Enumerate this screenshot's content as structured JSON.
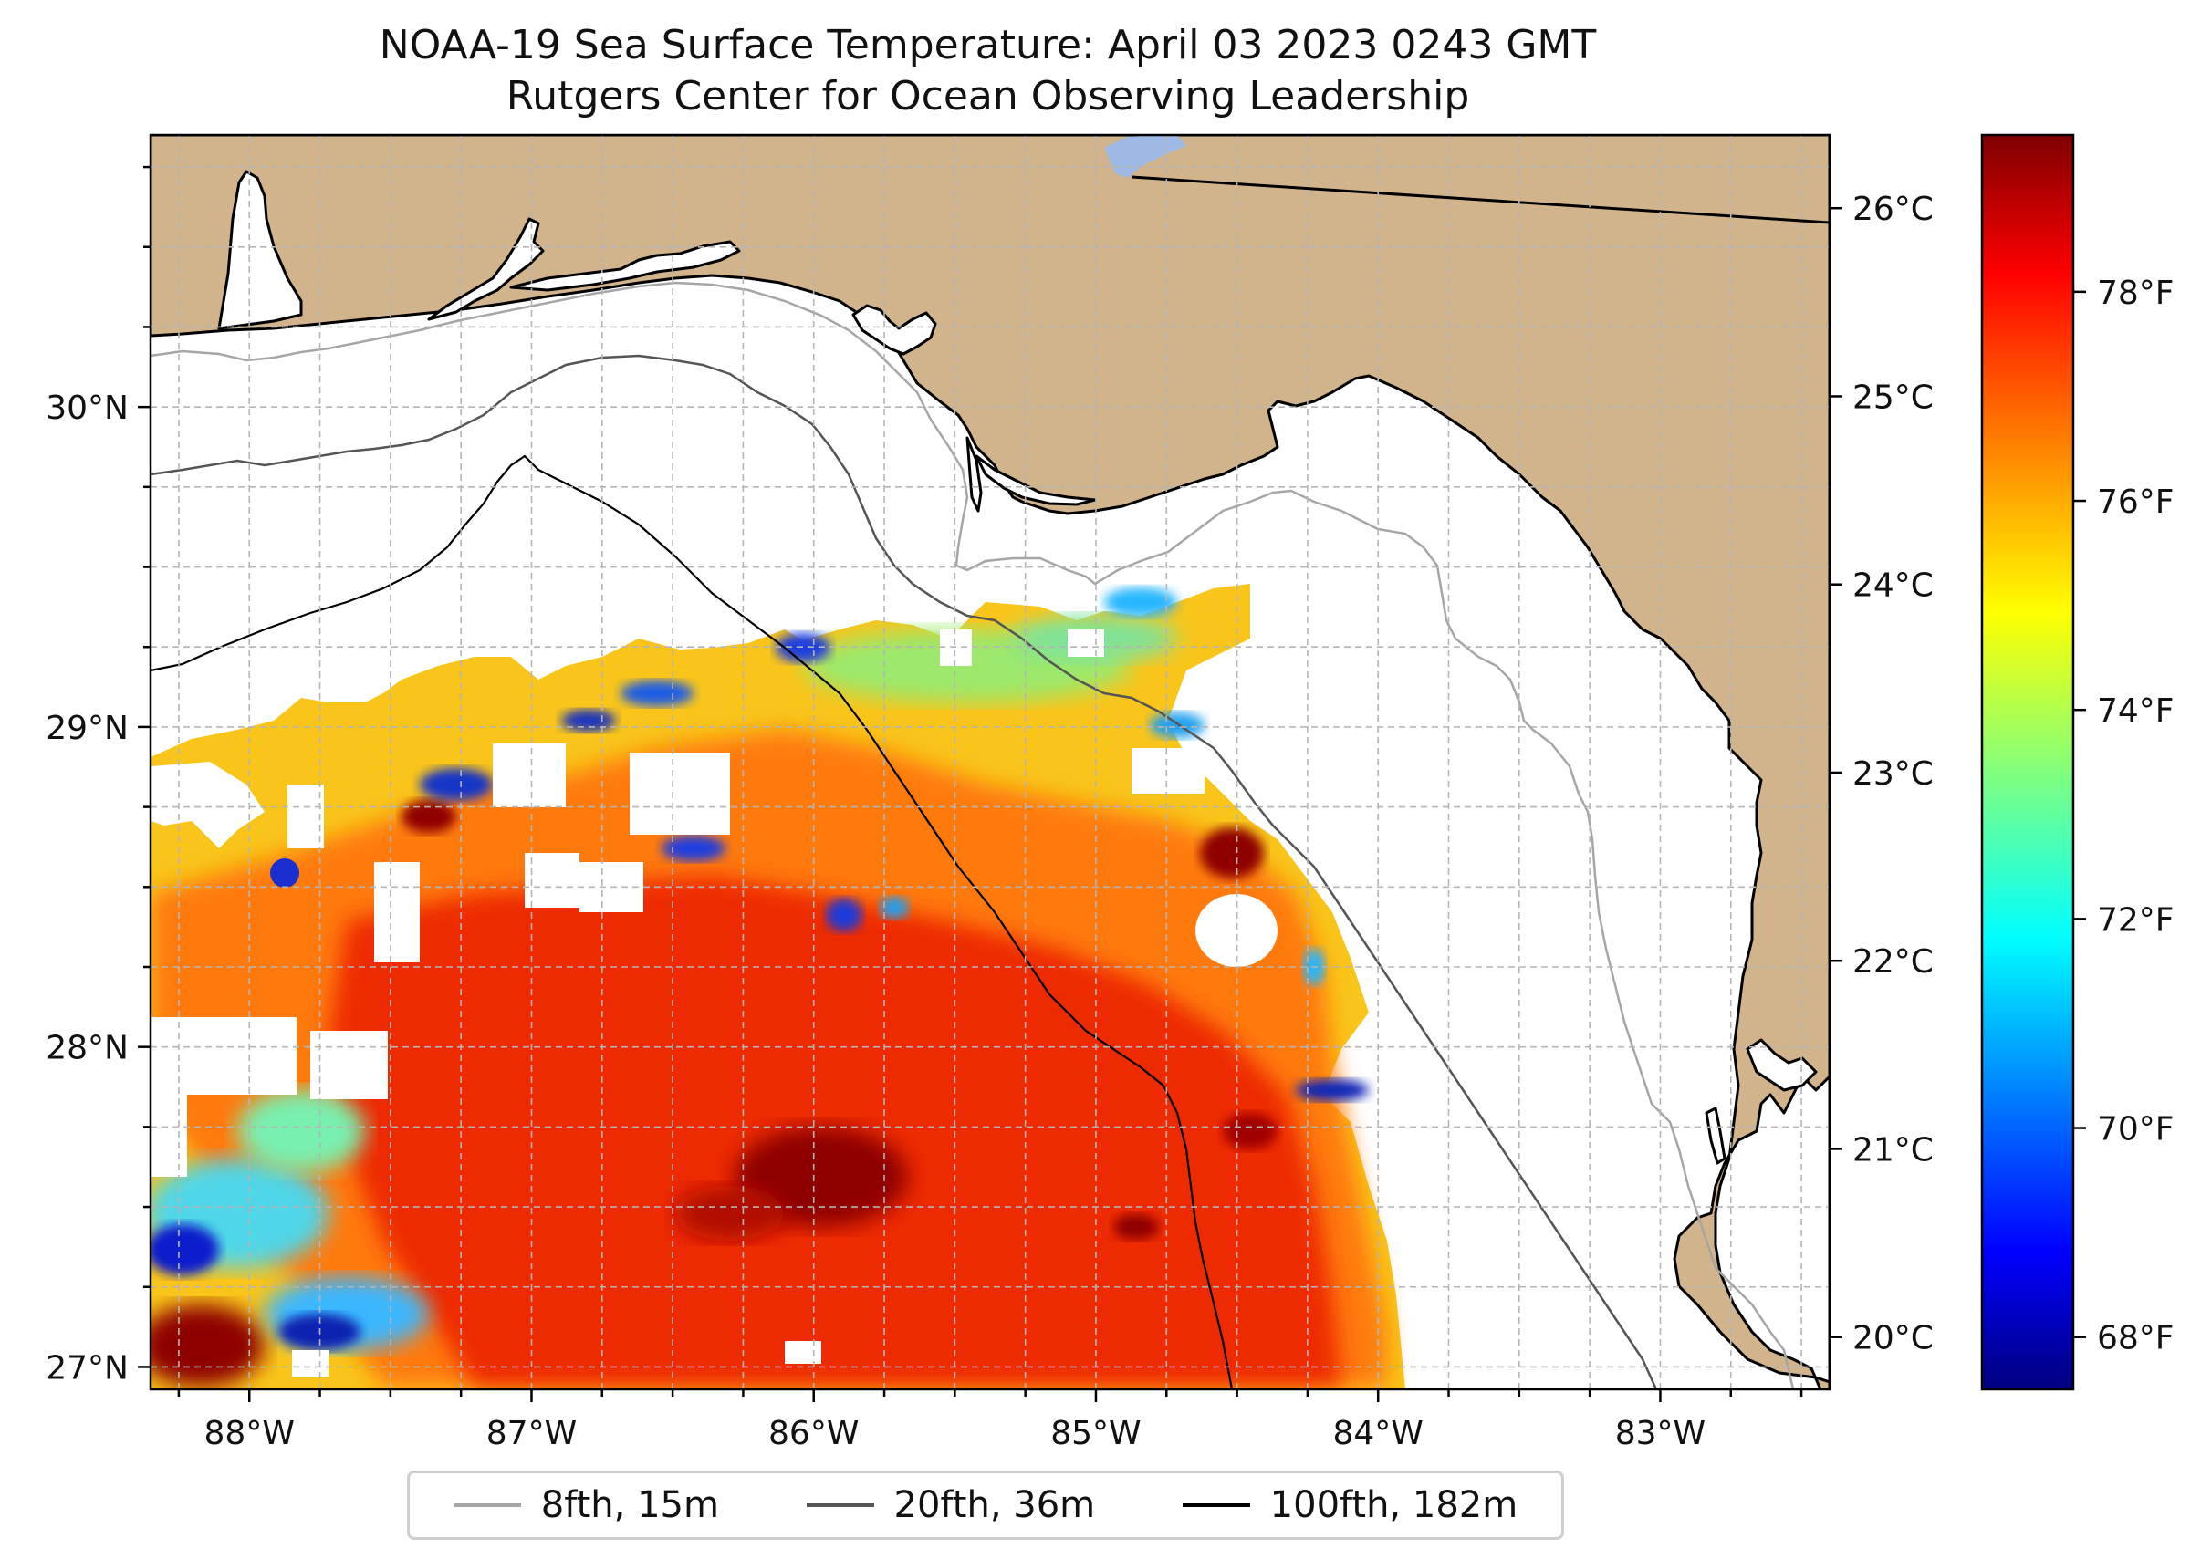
{
  "title": {
    "line1": "NOAA-19 Sea Surface Temperature: April 03 2023 0243 GMT",
    "line2": "Rutgers Center for Ocean Observing Leadership"
  },
  "map": {
    "projection": "PlateCarree",
    "lon_range": [
      -88.35,
      -82.4
    ],
    "lat_range": [
      26.93,
      30.85
    ],
    "land_color": "#d2b48c",
    "lat_ticks": [
      {
        "value": 30,
        "label": "30°N"
      },
      {
        "value": 29,
        "label": "29°N"
      },
      {
        "value": 28,
        "label": "28°N"
      },
      {
        "value": 27,
        "label": "27°N"
      }
    ],
    "lon_ticks": [
      {
        "value": -88,
        "label": "88°W"
      },
      {
        "value": -87,
        "label": "87°W"
      },
      {
        "value": -86,
        "label": "86°W"
      },
      {
        "value": -85,
        "label": "85°W"
      },
      {
        "value": -84,
        "label": "84°W"
      },
      {
        "value": -83,
        "label": "83°W"
      }
    ],
    "grid": true
  },
  "colorbar": {
    "colormap": "jet",
    "celsius_ticks": [
      {
        "value": 26,
        "label": "26°C"
      },
      {
        "value": 25,
        "label": "25°C"
      },
      {
        "value": 24,
        "label": "24°C"
      },
      {
        "value": 23,
        "label": "23°C"
      },
      {
        "value": 22,
        "label": "22°C"
      },
      {
        "value": 21,
        "label": "21°C"
      },
      {
        "value": 20,
        "label": "20°C"
      }
    ],
    "fahrenheit_ticks": [
      {
        "value": 78,
        "label": "78°F"
      },
      {
        "value": 76,
        "label": "76°F"
      },
      {
        "value": 74,
        "label": "74°F"
      },
      {
        "value": 72,
        "label": "72°F"
      },
      {
        "value": 70,
        "label": "70°F"
      },
      {
        "value": 68,
        "label": "68°F"
      }
    ],
    "range_f": [
      67.5,
      79.5
    ]
  },
  "legend": {
    "placement": "bottom-center",
    "items": [
      {
        "label": "8fth, 15m",
        "color": "#a6a6a6"
      },
      {
        "label": "20fth, 36m",
        "color": "#555555"
      },
      {
        "label": "100fth, 182m",
        "color": "#000000"
      }
    ]
  }
}
